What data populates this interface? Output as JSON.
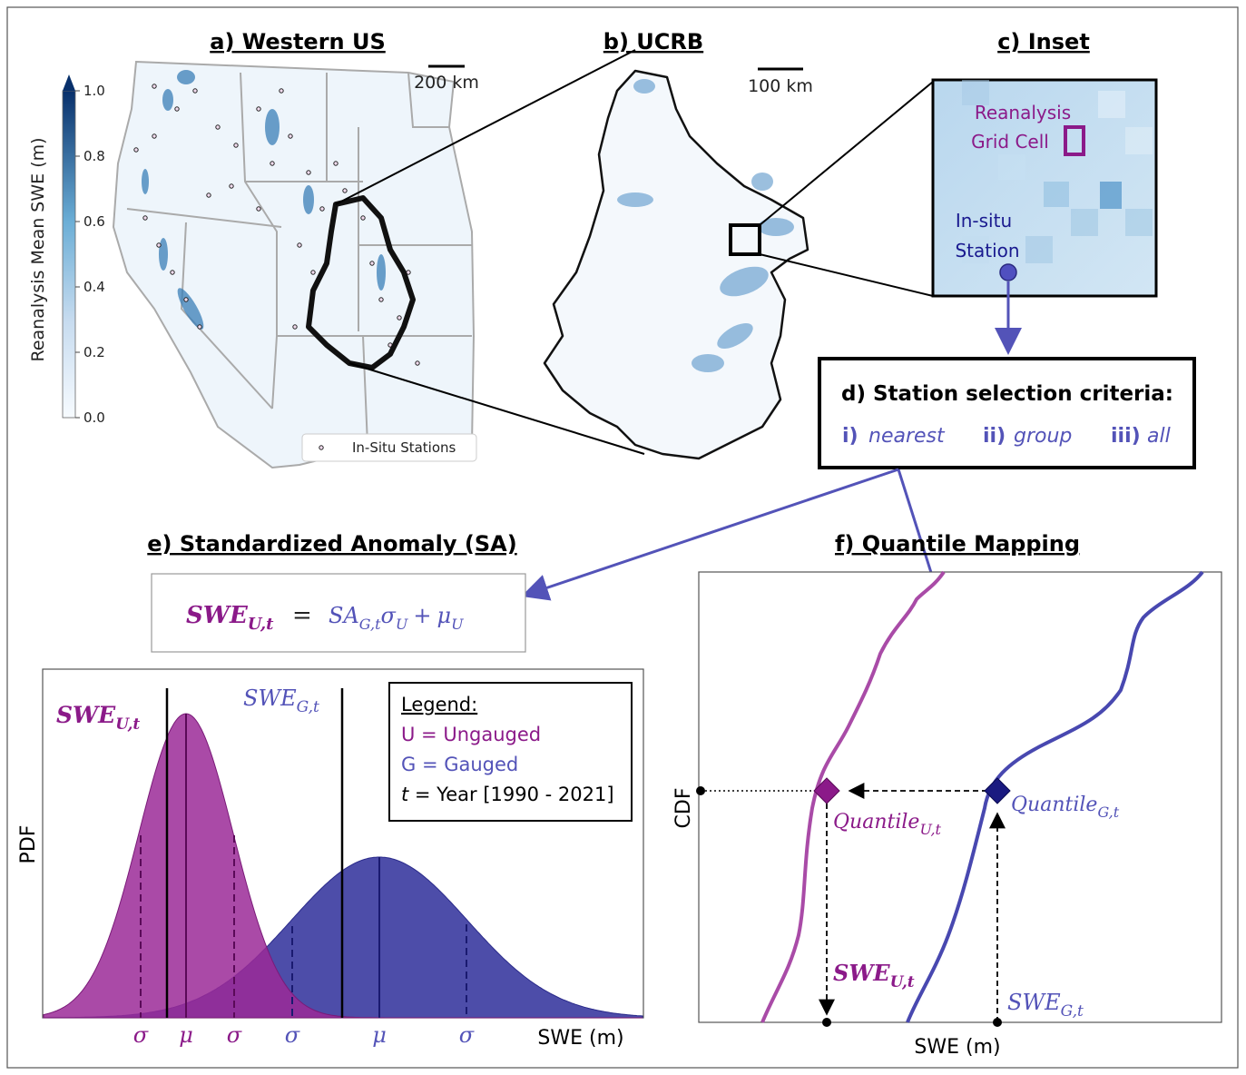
{
  "panels": {
    "a": {
      "title": "a) Western US",
      "scale": "200 km",
      "legend": "In-Situ Stations"
    },
    "b": {
      "title": "b) UCRB",
      "scale": "100 km"
    },
    "c": {
      "title": "c) Inset",
      "grid_label_1": "Reanalysis",
      "grid_label_2": "Grid Cell",
      "station_label_1": "In-situ",
      "station_label_2": "Station"
    },
    "d": {
      "title": "d) Station selection criteria:",
      "opt1_num": "i)",
      "opt1": "nearest",
      "opt2_num": "ii)",
      "opt2": "group",
      "opt3_num": "iii)",
      "opt3": "all"
    },
    "e": {
      "title": "e) Standardized Anomaly (SA)"
    },
    "f": {
      "title": "f) Quantile Mapping"
    }
  },
  "colorbar": {
    "label": "Reanalysis Mean SWE (m)",
    "ticks": [
      "1.0",
      "0.8",
      "0.6",
      "0.4",
      "0.2",
      "0.0"
    ]
  },
  "equation": {
    "lhs": "SWE",
    "lhs_sub": "U,t",
    "eq": "=",
    "sa": "SA",
    "sa_sub": "G,t",
    "sigma": "σ",
    "sigma_sub": "U",
    "plus": "+",
    "mu": "μ",
    "mu_sub": "U"
  },
  "pdf_plot": {
    "ylabel": "PDF",
    "xlabel": "SWE (m)",
    "swe_u": "SWE",
    "swe_u_sub": "U,t",
    "swe_g": "SWE",
    "swe_g_sub": "G,t",
    "legend_title": "Legend:",
    "legend_u": "U = Ungauged",
    "legend_g": "G = Gauged",
    "legend_t_var": "t",
    "legend_t": " = Year  [1990 - 2021]",
    "xticks": [
      "σ",
      "μ",
      "σ",
      "σ",
      "μ",
      "σ"
    ]
  },
  "cdf_plot": {
    "ylabel": "CDF",
    "xlabel": "SWE (m)",
    "q_u": "Quantile",
    "q_u_sub": "U,t",
    "q_g": "Quantile",
    "q_g_sub": "G,t",
    "swe_u": "SWE",
    "swe_u_sub": "U,t",
    "swe_g": "SWE",
    "swe_g_sub": "G,t"
  },
  "colors": {
    "ungauged": "#8b1a89",
    "gauged": "#3d3da8",
    "arrow": "#5353b8",
    "swe_blue": "#1f5f9e"
  }
}
